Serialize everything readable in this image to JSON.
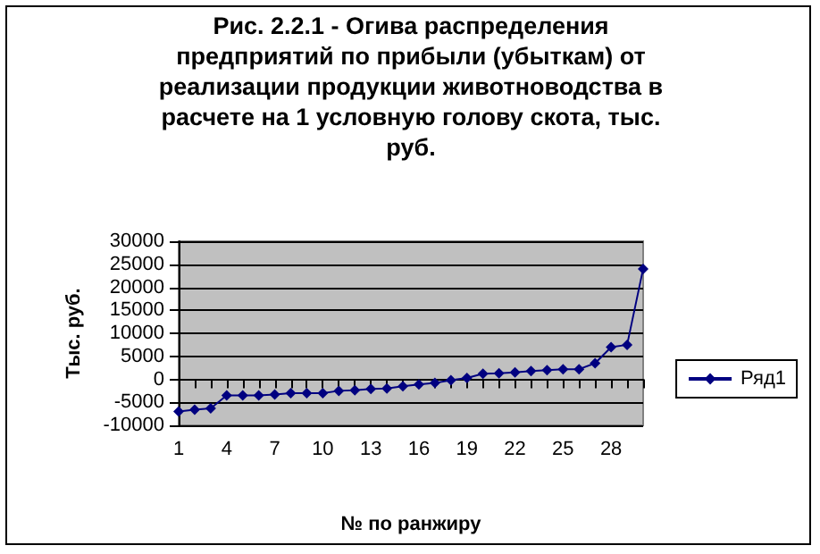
{
  "chart_data": {
    "type": "line",
    "title": "Рис. 2.2.1 - Огива распределения предприятий по прибыли (убыткам) от реализации продукции животноводства в расчете на 1 условную голову скота, тыс. руб.",
    "xlabel": "№ по ранжиру",
    "ylabel": "Тыс. руб.",
    "categories": [
      "1",
      null,
      null,
      "4",
      null,
      null,
      "7",
      null,
      null,
      "10",
      null,
      null,
      "13",
      null,
      null,
      "16",
      null,
      null,
      "19",
      null,
      null,
      "22",
      null,
      null,
      "25",
      null,
      null,
      "28",
      null,
      null
    ],
    "series": [
      {
        "name": "Ряд1",
        "color": "#000080",
        "values": [
          -7000,
          -6600,
          -6300,
          -3500,
          -3500,
          -3500,
          -3300,
          -3000,
          -3000,
          -3000,
          -2500,
          -2400,
          -2100,
          -2000,
          -1500,
          -1100,
          -800,
          -200,
          300,
          1200,
          1300,
          1500,
          1800,
          2000,
          2200,
          2200,
          3500,
          7000,
          7500,
          24000
        ]
      }
    ],
    "ylim": [
      -10000,
      30000
    ],
    "yticks": [
      -10000,
      -5000,
      0,
      5000,
      10000,
      15000,
      20000,
      25000,
      30000
    ],
    "grid": "y",
    "legend": "right",
    "marker": "diamond",
    "line_style": "solid"
  }
}
